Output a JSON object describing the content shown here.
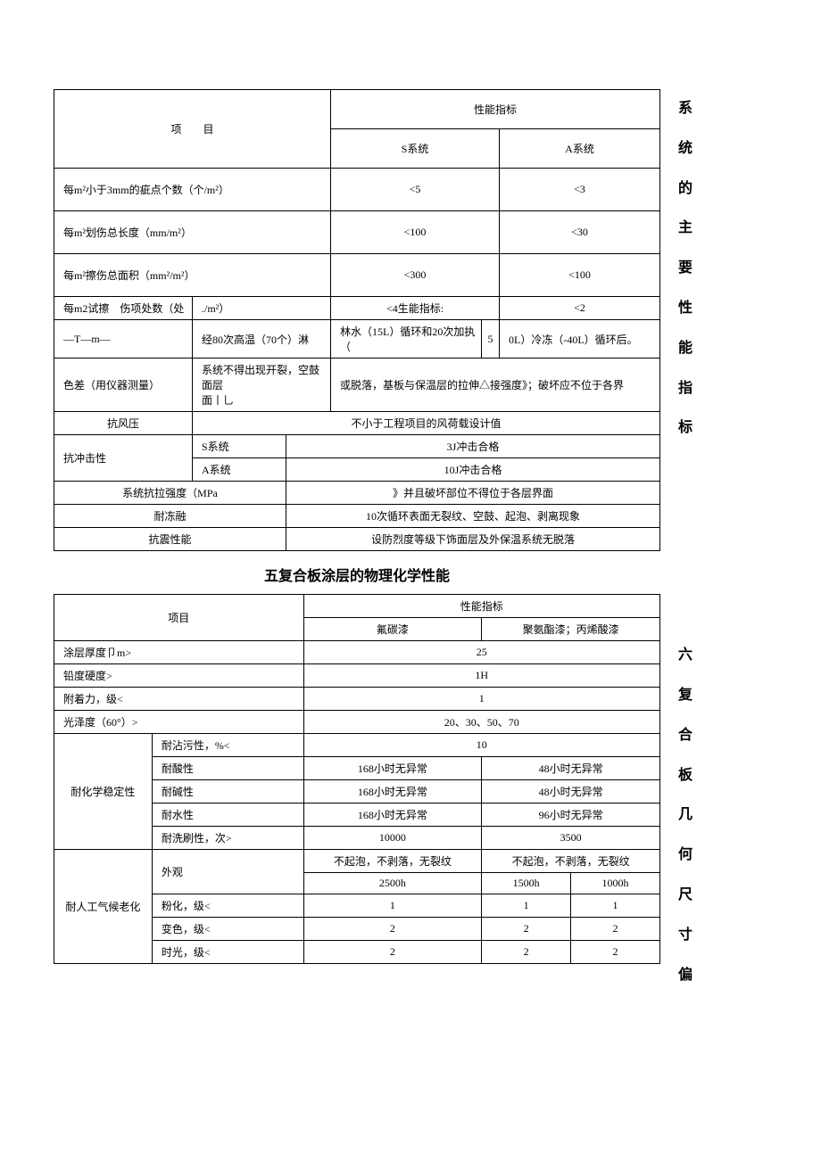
{
  "sideText1": "系统的主要性能指标",
  "sideText2": "六复合板几何尺寸偏",
  "sectionTitle": "五复合板涂层的物理化学性能",
  "table1": {
    "header": {
      "item": "项　　目",
      "perf": "性能指标",
      "sys_s": "S系统",
      "sys_a": "A系统"
    },
    "rows": [
      {
        "label": "每m²小于3mm的疵点个数（个/m²）",
        "s": "<5",
        "a": "<3"
      },
      {
        "label": "每m²划伤总长度（mm/m²）",
        "s": "<100",
        "a": "<30"
      },
      {
        "label": "每m²擦伤总面积（mm²/m²）",
        "s": "<300",
        "a": "<100"
      },
      {
        "label_a": "每m2试擦　伤项处数（处",
        "label_b": "./m²）",
        "s": "<4生能指标:",
        "a": "<2"
      }
    ],
    "weather": {
      "c1": "—T—m—",
      "c2": "经80次高温（70个）淋",
      "c3": "林水（15L）循环和20次加执（",
      "c4": "5",
      "c5": "0L）冷冻（-40L）循环后。"
    },
    "colorDiff": {
      "label": "色差（用仪器测量）",
      "c2": "系统不得出现开裂，空鼓面层\n面丨乚",
      "c3": "或脱落，基板与保温层的拉伸△接强度》；破坏应不位于各界"
    },
    "wind": {
      "label": "抗风压",
      "val": "不小于工程项目的风荷载设计值"
    },
    "impact": {
      "group": "抗冲击性",
      "r1a": "S系统",
      "r1b": "3J冲击合格",
      "r2a": "A系统",
      "r2b": "10J冲击合格"
    },
    "tensile": {
      "label": "系统抗拉强度（MPa",
      "val": "》并且破坏部位不得位于各层界面"
    },
    "freeze": {
      "label": "耐冻融",
      "val": "10次循环表面无裂纹、空鼓、起泡、剥离现象"
    },
    "seismic": {
      "label": "抗震性能",
      "val": "设防烈度等级下饰面层及外保温系统无脱落"
    }
  },
  "table2": {
    "header": {
      "item": "项目",
      "perf": "性能指标",
      "c1": "氟碳漆",
      "c2": "聚氨酯漆；丙烯酸漆"
    },
    "thickness": {
      "label": "涂层厚度卩m>",
      "val": "25"
    },
    "hardness": {
      "label": "铅度硬度>",
      "val": "1H"
    },
    "adhesion": {
      "label": "附着力，级<",
      "val": "1"
    },
    "gloss": {
      "label": "光泽度（60°）>",
      "val": "20、30、50、70"
    },
    "chem": {
      "group": "耐化学稳定性",
      "stain": {
        "label": "耐沾污性，%<",
        "val": "10"
      },
      "acid": {
        "label": "耐酸性",
        "v1": "168小时无异常",
        "v2": "48小时无异常"
      },
      "alkali": {
        "label": "耐碱性",
        "v1": "168小时无异常",
        "v2": "48小时无异常"
      },
      "water": {
        "label": "耐水性",
        "v1": "168小时无异常",
        "v2": "96小时无异常"
      },
      "brush": {
        "label": "耐洗刷性，次>",
        "v1": "10000",
        "v2": "3500"
      }
    },
    "aging": {
      "group": "耐人工气候老化",
      "appearance": {
        "label": "外观",
        "v1": "不起泡，不剥落，无裂纹",
        "v2": "不起泡，不剥落，无裂纹",
        "h1": "2500h",
        "h2": "1500h",
        "h3": "1000h"
      },
      "chalk": {
        "label": "粉化，级<",
        "v1": "1",
        "v2": "1",
        "v3": "1"
      },
      "discolor": {
        "label": "变色，级<",
        "v1": "2",
        "v2": "2",
        "v3": "2"
      },
      "time": {
        "label": "时光，级<",
        "v1": "2",
        "v2": "2",
        "v3": "2"
      }
    }
  }
}
